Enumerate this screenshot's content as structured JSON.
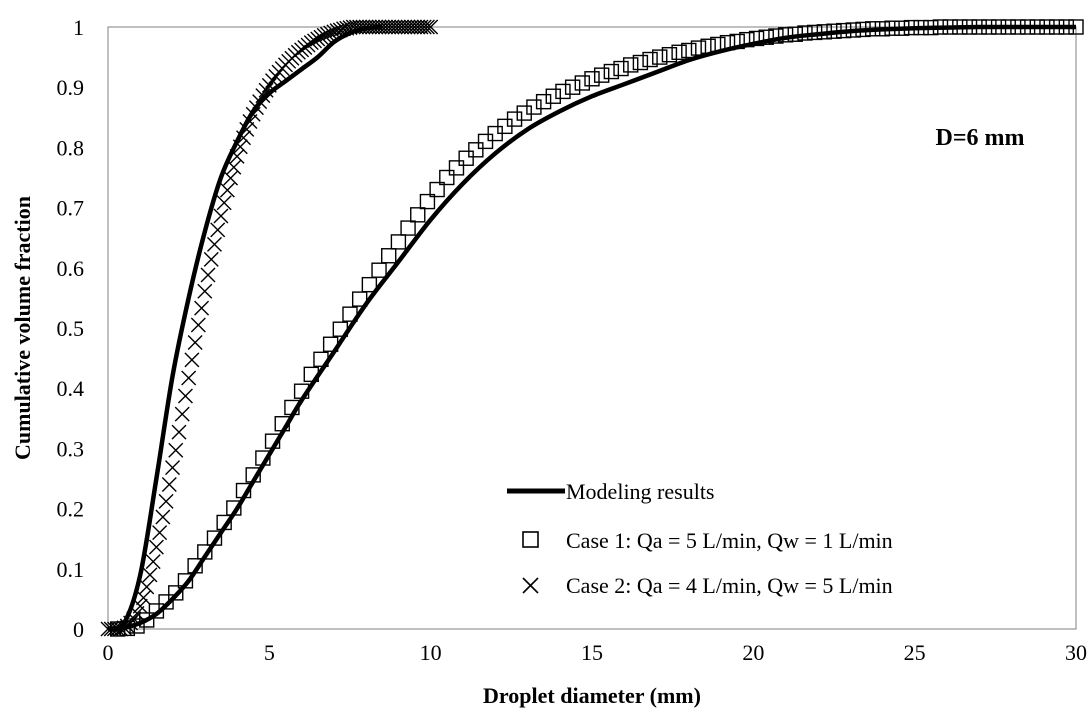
{
  "chart_data": {
    "type": "scatter",
    "xlabel": "Droplet diameter (mm)",
    "ylabel": "Cumulative volume fraction",
    "xlim": [
      0,
      30
    ],
    "ylim": [
      0,
      1
    ],
    "x_ticks": [
      "0",
      "5",
      "10",
      "15",
      "20",
      "25",
      "30"
    ],
    "y_ticks": [
      "0",
      "0.1",
      "0.2",
      "0.3",
      "0.4",
      "0.5",
      "0.6",
      "0.7",
      "0.8",
      "0.9",
      "1"
    ],
    "annotation": "D=6 mm",
    "grid": false,
    "legend_position": "bottom-right",
    "series": [
      {
        "name": "Modeling results",
        "kind": "line",
        "color": "#000000",
        "x": [
          0,
          0.5,
          1,
          1.5,
          2,
          2.5,
          3,
          3.5,
          4,
          4.5,
          5,
          5.5,
          6,
          6.5,
          7,
          7.5,
          8,
          8.5
        ],
        "y": [
          0,
          0.01,
          0.09,
          0.25,
          0.42,
          0.55,
          0.66,
          0.75,
          0.81,
          0.86,
          0.89,
          0.91,
          0.93,
          0.95,
          0.975,
          0.99,
          0.998,
          1.0
        ]
      },
      {
        "name": "Modeling results",
        "kind": "line",
        "color": "#000000",
        "x": [
          0,
          0.5,
          1,
          1.5,
          2,
          2.5,
          3,
          3.5,
          4,
          4.5,
          5,
          5.5,
          6,
          7,
          8,
          9,
          10,
          11,
          12,
          13,
          14,
          15,
          16,
          17,
          18,
          19,
          20,
          21,
          22,
          23,
          24,
          25,
          26,
          27,
          28,
          29,
          30
        ],
        "y": [
          0,
          0.002,
          0.01,
          0.025,
          0.05,
          0.08,
          0.12,
          0.16,
          0.2,
          0.245,
          0.29,
          0.335,
          0.38,
          0.46,
          0.54,
          0.61,
          0.68,
          0.74,
          0.79,
          0.83,
          0.86,
          0.885,
          0.905,
          0.925,
          0.945,
          0.96,
          0.972,
          0.982,
          0.988,
          0.993,
          0.996,
          0.998,
          0.999,
          1.0,
          1.0,
          1.0,
          1.0
        ]
      },
      {
        "name": "Case 1: Qa = 5 L/min, Qw = 1 L/min",
        "kind": "square",
        "color": "#000000",
        "x": [
          0.3,
          0.6,
          0.9,
          1.2,
          1.5,
          1.8,
          2.1,
          2.4,
          2.7,
          3.0,
          3.3,
          3.6,
          3.9,
          4.2,
          4.5,
          4.8,
          5.1,
          5.4,
          5.7,
          6.0,
          6.3,
          6.6,
          6.9,
          7.2,
          7.5,
          7.8,
          8.1,
          8.4,
          8.7,
          9.0,
          9.3,
          9.6,
          9.9,
          10.2,
          10.5,
          10.8,
          11.1,
          11.4,
          11.7,
          12.0,
          12.3,
          12.6,
          12.9,
          13.2,
          13.5,
          13.8,
          14.1,
          14.4,
          14.7,
          15.0,
          15.3,
          15.6,
          15.9,
          16.2,
          16.5,
          16.8,
          17.1,
          17.4,
          17.7,
          18.0,
          18.3,
          18.6,
          18.9,
          19.2,
          19.5,
          19.8,
          20.1,
          20.4,
          20.7,
          21.0,
          21.3,
          21.6,
          21.9,
          22.2,
          22.5,
          22.8,
          23.1,
          23.4,
          23.7,
          24.0,
          24.3,
          24.6,
          24.9,
          25.2,
          25.5,
          25.8,
          26.1,
          26.4,
          26.7,
          27.0,
          27.3,
          27.6,
          27.9,
          28.2,
          28.5,
          28.8,
          29.1,
          29.4,
          29.7,
          30.0
        ],
        "y": [
          0.0,
          0.001,
          0.005,
          0.015,
          0.03,
          0.045,
          0.06,
          0.08,
          0.105,
          0.128,
          0.151,
          0.177,
          0.201,
          0.23,
          0.256,
          0.284,
          0.312,
          0.341,
          0.368,
          0.395,
          0.423,
          0.448,
          0.473,
          0.498,
          0.523,
          0.548,
          0.572,
          0.596,
          0.62,
          0.643,
          0.666,
          0.688,
          0.71,
          0.73,
          0.75,
          0.766,
          0.782,
          0.796,
          0.81,
          0.823,
          0.835,
          0.847,
          0.857,
          0.867,
          0.876,
          0.885,
          0.893,
          0.9,
          0.907,
          0.914,
          0.92,
          0.926,
          0.931,
          0.937,
          0.941,
          0.946,
          0.95,
          0.954,
          0.958,
          0.961,
          0.965,
          0.968,
          0.971,
          0.974,
          0.976,
          0.979,
          0.981,
          0.983,
          0.985,
          0.987,
          0.988,
          0.99,
          0.991,
          0.992,
          0.993,
          0.994,
          0.995,
          0.996,
          0.997,
          0.997,
          0.998,
          0.998,
          0.999,
          0.999,
          0.999,
          1.0,
          1.0,
          1.0,
          1.0,
          1.0,
          1.0,
          1.0,
          1.0,
          1.0,
          1.0,
          1.0,
          1.0,
          1.0,
          1.0,
          1.0
        ]
      },
      {
        "name": "Case 2: Qa = 4 L/min, Qw = 5 L/min",
        "kind": "cross",
        "color": "#000000",
        "x": [
          0.0,
          0.1,
          0.2,
          0.3,
          0.4,
          0.5,
          0.6,
          0.7,
          0.8,
          0.9,
          1.0,
          1.1,
          1.2,
          1.3,
          1.4,
          1.5,
          1.6,
          1.7,
          1.8,
          1.9,
          2.0,
          2.1,
          2.2,
          2.3,
          2.4,
          2.5,
          2.6,
          2.7,
          2.8,
          2.9,
          3.0,
          3.1,
          3.2,
          3.3,
          3.4,
          3.5,
          3.6,
          3.7,
          3.8,
          3.9,
          4.0,
          4.1,
          4.2,
          4.3,
          4.4,
          4.5,
          4.6,
          4.7,
          4.8,
          4.9,
          5.0,
          5.1,
          5.2,
          5.3,
          5.4,
          5.5,
          5.6,
          5.7,
          5.8,
          5.9,
          6.0,
          6.1,
          6.2,
          6.3,
          6.4,
          6.5,
          6.6,
          6.7,
          6.8,
          6.9,
          7.0,
          7.1,
          7.2,
          7.3,
          7.4,
          7.5,
          7.6,
          7.7,
          7.8,
          7.9,
          8.0,
          8.1,
          8.2,
          8.3,
          8.4,
          8.5,
          8.6,
          8.7,
          8.8,
          8.9,
          9.0,
          9.1,
          9.2,
          9.3,
          9.4,
          9.5,
          9.6,
          9.7,
          9.8,
          9.9,
          10.0
        ],
        "y": [
          0.0,
          0.0,
          0.0,
          0.0,
          0.0,
          0.002,
          0.005,
          0.01,
          0.017,
          0.026,
          0.038,
          0.052,
          0.07,
          0.09,
          0.112,
          0.136,
          0.16,
          0.186,
          0.212,
          0.24,
          0.268,
          0.297,
          0.327,
          0.357,
          0.387,
          0.417,
          0.447,
          0.476,
          0.505,
          0.533,
          0.561,
          0.588,
          0.614,
          0.639,
          0.663,
          0.686,
          0.708,
          0.729,
          0.749,
          0.767,
          0.785,
          0.801,
          0.816,
          0.83,
          0.843,
          0.855,
          0.866,
          0.876,
          0.886,
          0.895,
          0.903,
          0.911,
          0.918,
          0.925,
          0.931,
          0.937,
          0.943,
          0.948,
          0.953,
          0.958,
          0.962,
          0.966,
          0.97,
          0.974,
          0.977,
          0.98,
          0.983,
          0.986,
          0.988,
          0.99,
          0.992,
          0.994,
          0.995,
          0.997,
          0.998,
          0.999,
          1.0,
          1.0,
          1.0,
          1.0,
          1.0,
          1.0,
          1.0,
          1.0,
          1.0,
          1.0,
          1.0,
          1.0,
          1.0,
          1.0,
          1.0,
          1.0,
          1.0,
          1.0,
          1.0,
          1.0,
          1.0,
          1.0,
          1.0,
          1.0,
          1.0
        ]
      }
    ],
    "legend": [
      {
        "label": "Modeling results",
        "marker": "line"
      },
      {
        "label": "Case 1: Qa = 5 L/min, Qw = 1 L/min",
        "marker": "square"
      },
      {
        "label": "Case 2: Qa = 4 L/min, Qw = 5 L/min",
        "marker": "cross"
      }
    ]
  }
}
